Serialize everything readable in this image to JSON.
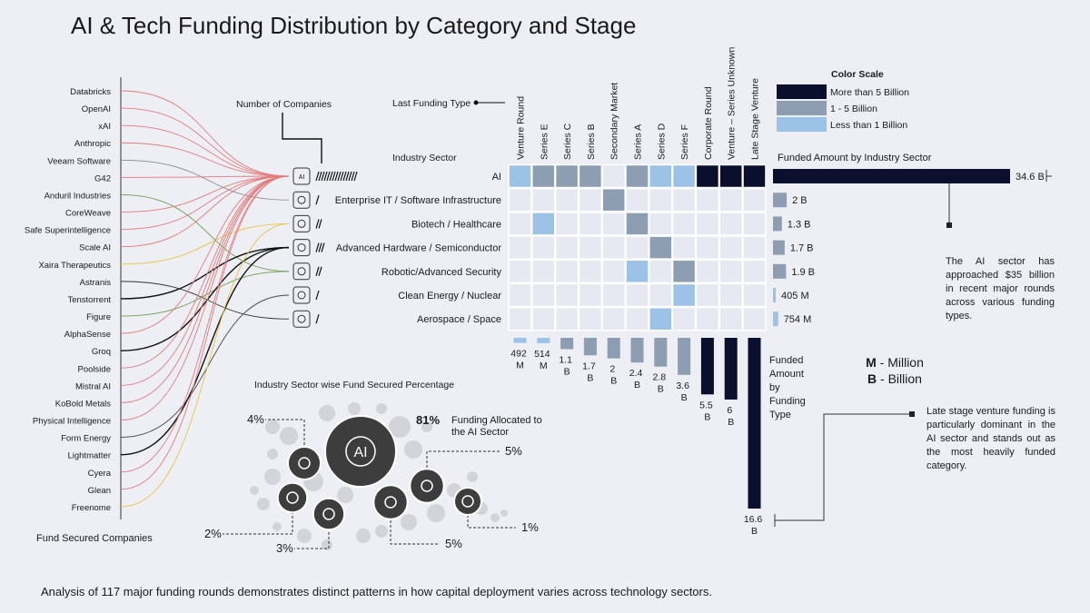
{
  "title": "AI & Tech Funding Distribution by Category and Stage",
  "footer": "Analysis of 117 major funding rounds demonstrates distinct patterns in how capital deployment varies across technology sectors.",
  "companies_label": "Fund Secured Companies",
  "companies": [
    {
      "name": "Databricks",
      "sector": 0
    },
    {
      "name": "OpenAI",
      "sector": 0
    },
    {
      "name": "xAI",
      "sector": 0
    },
    {
      "name": "Anthropic",
      "sector": 0
    },
    {
      "name": "Veeam Software",
      "sector": 1
    },
    {
      "name": "G42",
      "sector": 0
    },
    {
      "name": "Anduril Industries",
      "sector": 4
    },
    {
      "name": "CoreWeave",
      "sector": 0
    },
    {
      "name": "Safe Superintelligence",
      "sector": 0
    },
    {
      "name": "Scale AI",
      "sector": 0
    },
    {
      "name": "Xaira Therapeutics",
      "sector": 2
    },
    {
      "name": "Astranis",
      "sector": 6
    },
    {
      "name": "Tenstorrent",
      "sector": 3
    },
    {
      "name": "Figure",
      "sector": 4
    },
    {
      "name": "AlphaSense",
      "sector": 0
    },
    {
      "name": "Groq",
      "sector": 3
    },
    {
      "name": "Poolside",
      "sector": 0
    },
    {
      "name": "Mistral AI",
      "sector": 0
    },
    {
      "name": "KoBold Metals",
      "sector": 0
    },
    {
      "name": "Physical Intelligence",
      "sector": 0
    },
    {
      "name": "Form Energy",
      "sector": 5
    },
    {
      "name": "Lightmatter",
      "sector": 3
    },
    {
      "name": "Cyera",
      "sector": 0
    },
    {
      "name": "Glean",
      "sector": 0
    },
    {
      "name": "Freenome",
      "sector": 2
    }
  ],
  "number_of_companies_label": "Number of Companies",
  "last_funding_type_label": "Last Funding Type",
  "industry_sector_label": "Industry Sector",
  "sector_amount_label": "Funded Amount by Industry Sector",
  "type_amount_label": "Funded Amount by Funding Type",
  "sectors": [
    {
      "name": "AI",
      "companies": 15,
      "link_color": "#e27b7b",
      "amount": 34.6,
      "amount_label": "34.6 B",
      "level": 0,
      "share": 81,
      "share_label": "81%"
    },
    {
      "name": "Enterprise IT / Software Infrastructure",
      "companies": 1,
      "link_color": "#8a8a8a",
      "amount": 2,
      "amount_label": "2 B",
      "level": 1,
      "share": 5,
      "share_label": "5%"
    },
    {
      "name": "Biotech / Healthcare",
      "companies": 2,
      "link_color": "#e8c347",
      "amount": 1.3,
      "amount_label": "1.3 B",
      "level": 1,
      "share": 3,
      "share_label": "3%"
    },
    {
      "name": "Advanced Hardware / Semiconductor",
      "companies": 3,
      "link_color": "#111111",
      "amount": 1.7,
      "amount_label": "1.7 B",
      "level": 1,
      "share": 4,
      "share_label": "4%"
    },
    {
      "name": "Robotic/Advanced Security",
      "companies": 2,
      "link_color": "#6e9c4c",
      "amount": 1.9,
      "amount_label": "1.9 B",
      "level": 1,
      "share": 5,
      "share_label": "5%"
    },
    {
      "name": "Clean Energy / Nuclear",
      "companies": 1,
      "link_color": "#444444",
      "amount": 0.405,
      "amount_label": "405 M",
      "level": 2,
      "share": 1,
      "share_label": "1%"
    },
    {
      "name": "Aerospace / Space",
      "companies": 1,
      "link_color": "#333333",
      "amount": 0.754,
      "amount_label": "754 M",
      "level": 2,
      "share": 2,
      "share_label": "2%"
    }
  ],
  "funding_types": [
    {
      "name": "Venture Round",
      "amount": 0.492,
      "amount_label": "492 M",
      "level": 2
    },
    {
      "name": "Series E",
      "amount": 0.514,
      "amount_label": "514 M",
      "level": 2
    },
    {
      "name": "Series C",
      "amount": 1.1,
      "amount_label": "1.1 B",
      "level": 1
    },
    {
      "name": "Series B",
      "amount": 1.7,
      "amount_label": "1.7 B",
      "level": 1
    },
    {
      "name": "Secondary Market",
      "amount": 2,
      "amount_label": "2 B",
      "level": 1
    },
    {
      "name": "Series A",
      "amount": 2.4,
      "amount_label": "2.4 B",
      "level": 1
    },
    {
      "name": "Series D",
      "amount": 2.8,
      "amount_label": "2.8 B",
      "level": 1
    },
    {
      "name": "Series F",
      "amount": 3.6,
      "amount_label": "3.6 B",
      "level": 1
    },
    {
      "name": "Corporate Round",
      "amount": 5.5,
      "amount_label": "5.5 B",
      "level": 0
    },
    {
      "name": "Venture – Series Unknown",
      "amount": 6,
      "amount_label": "6 B",
      "level": 0
    },
    {
      "name": "Late Stage Venture",
      "amount": 16.6,
      "amount_label": "16.6 B",
      "level": 0
    }
  ],
  "heatmap": [
    [
      2,
      1,
      1,
      1,
      null,
      1,
      2,
      2,
      0,
      0,
      0
    ],
    [
      null,
      null,
      null,
      null,
      1,
      null,
      null,
      null,
      null,
      null,
      null
    ],
    [
      null,
      2,
      null,
      null,
      null,
      1,
      null,
      null,
      null,
      null,
      null
    ],
    [
      null,
      null,
      null,
      null,
      null,
      null,
      1,
      null,
      null,
      null,
      null
    ],
    [
      null,
      null,
      null,
      null,
      null,
      2,
      null,
      1,
      null,
      null,
      null
    ],
    [
      null,
      null,
      null,
      null,
      null,
      null,
      null,
      2,
      null,
      null,
      null
    ],
    [
      null,
      null,
      null,
      null,
      null,
      null,
      2,
      null,
      null,
      null,
      null
    ]
  ],
  "color_scale": {
    "title": "Color Scale",
    "levels": [
      {
        "label": "More than 5 Billion",
        "color": "#0b0f2e"
      },
      {
        "label": "1 - 5 Billion",
        "color": "#8d9db2"
      },
      {
        "label": "Less than 1 Billion",
        "color": "#9cc3e6"
      }
    ]
  },
  "units": [
    {
      "abbr": "M",
      "text": "- Million"
    },
    {
      "abbr": "B",
      "text": "- Billion"
    }
  ],
  "share_title": "Industry Sector wise Fund Secured Percentage",
  "share_caption": "Funding Allocated to the AI Sector",
  "annotations": {
    "ai_sector": "The AI sector has approached $35 billion in recent major rounds across various funding types.",
    "late_stage": "Late stage venture funding is particularly dominant in the AI sector and stands out as the most heavily funded category."
  }
}
